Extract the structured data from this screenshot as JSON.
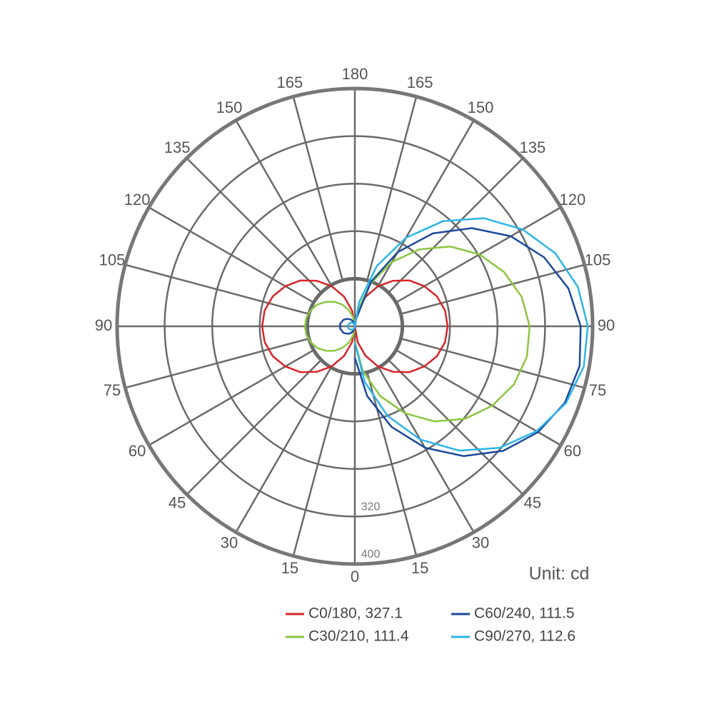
{
  "chart_data": {
    "type": "polar",
    "unit_label": "Unit: cd",
    "rlim": [
      0,
      400
    ],
    "rgrid": [
      80,
      160,
      240
    ],
    "rticks": [
      320,
      400
    ],
    "angle_ticks": [
      0,
      15,
      30,
      45,
      60,
      75,
      90,
      105,
      120,
      135,
      150,
      165,
      180
    ],
    "angles": [
      0,
      10,
      20,
      30,
      40,
      50,
      60,
      70,
      80,
      90,
      100,
      110,
      120,
      130,
      140,
      150,
      160,
      170,
      180
    ],
    "series": [
      {
        "name": "C0/180, 327.1",
        "color": "#d7252a",
        "values_right": [
          0,
          27,
          53,
          78,
          100,
          120,
          135,
          147,
          154,
          156,
          154,
          147,
          135,
          120,
          100,
          78,
          53,
          27,
          0
        ],
        "values_left": [
          0,
          27,
          53,
          78,
          100,
          120,
          135,
          147,
          154,
          156,
          154,
          147,
          135,
          120,
          100,
          78,
          53,
          27,
          0
        ]
      },
      {
        "name": "C30/210, 111.4",
        "color": "#8cc63f",
        "values_right": [
          26,
          76,
          125,
          169,
          209,
          242,
          267,
          285,
          294,
          294,
          285,
          267,
          242,
          209,
          169,
          125,
          76,
          26,
          0
        ],
        "values_left": [
          0,
          15,
          29,
          42,
          54,
          64,
          73,
          79,
          83,
          84,
          83,
          79,
          73,
          64,
          54,
          42,
          29,
          15,
          0
        ]
      },
      {
        "name": "C60/240, 111.5",
        "color": "#1a4a9a",
        "values_right": [
          53,
          119,
          180,
          236,
          285,
          326,
          356,
          376,
          384,
          380,
          365,
          339,
          303,
          257,
          204,
          144,
          80,
          13,
          0
        ],
        "values_left": [
          0,
          4,
          9,
          13,
          16,
          19,
          22,
          23,
          25,
          25,
          25,
          23,
          22,
          19,
          16,
          13,
          9,
          4,
          0
        ]
      },
      {
        "name": "C90/270, 112.6",
        "color": "#2cb5e8",
        "values_right": [
          27,
          95,
          160,
          220,
          273,
          318,
          353,
          378,
          391,
          392,
          381,
          359,
          326,
          283,
          231,
          172,
          108,
          41,
          0
        ],
        "values_left": [
          0,
          2,
          4,
          6,
          8,
          9,
          10,
          11,
          12,
          12,
          12,
          11,
          10,
          9,
          8,
          6,
          4,
          2,
          0
        ]
      }
    ]
  }
}
